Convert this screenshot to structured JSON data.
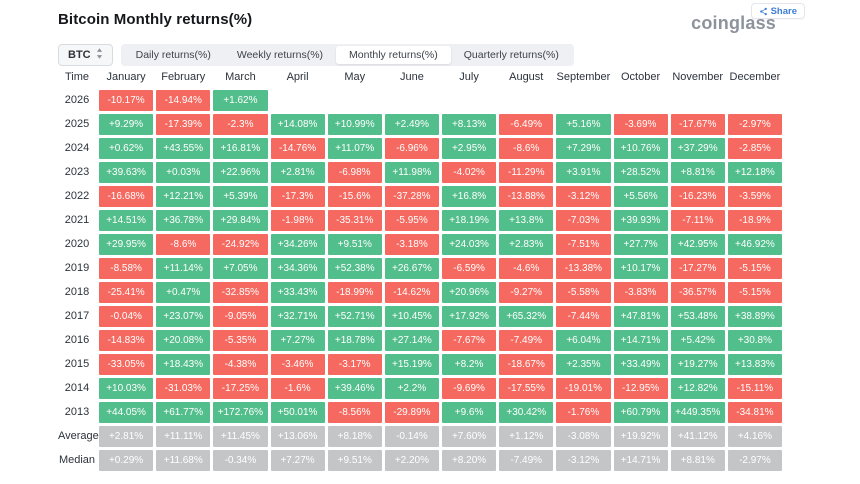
{
  "header": {
    "title": "Bitcoin Monthly returns(%)",
    "share_label": "Share",
    "logo": "coinglass"
  },
  "toolbar": {
    "symbol": "BTC",
    "tabs": [
      {
        "name": "tab-daily-returns",
        "label": "Daily returns(%)",
        "active": false
      },
      {
        "name": "tab-weekly-returns",
        "label": "Weekly returns(%)",
        "active": false
      },
      {
        "name": "tab-monthly-returns",
        "label": "Monthly returns(%)",
        "active": true
      },
      {
        "name": "tab-quarterly-returns",
        "label": "Quarterly returns(%)",
        "active": false
      }
    ]
  },
  "colors": {
    "positive": "#52BE8C",
    "negative": "#F66960",
    "muted": "#C3C5C7",
    "accent_blue": "#3d7ed6"
  },
  "chart_data": {
    "type": "heatmap",
    "title": "Bitcoin Monthly returns(%)",
    "time_header": "Time",
    "columns": [
      "January",
      "February",
      "March",
      "April",
      "May",
      "June",
      "July",
      "August",
      "September",
      "October",
      "November",
      "December"
    ],
    "rows": [
      {
        "label": "2026",
        "muted": false,
        "values": [
          "-10.17%",
          "-14.94%",
          "+1.62%",
          "",
          "",
          "",
          "",
          "",
          "",
          "",
          "",
          ""
        ]
      },
      {
        "label": "2025",
        "muted": false,
        "values": [
          "+9.29%",
          "-17.39%",
          "-2.3%",
          "+14.08%",
          "+10.99%",
          "+2.49%",
          "+8.13%",
          "-6.49%",
          "+5.16%",
          "-3.69%",
          "-17.67%",
          "-2.97%"
        ]
      },
      {
        "label": "2024",
        "muted": false,
        "values": [
          "+0.62%",
          "+43.55%",
          "+16.81%",
          "-14.76%",
          "+11.07%",
          "-6.96%",
          "+2.95%",
          "-8.6%",
          "+7.29%",
          "+10.76%",
          "+37.29%",
          "-2.85%"
        ]
      },
      {
        "label": "2023",
        "muted": false,
        "values": [
          "+39.63%",
          "+0.03%",
          "+22.96%",
          "+2.81%",
          "-6.98%",
          "+11.98%",
          "-4.02%",
          "-11.29%",
          "+3.91%",
          "+28.52%",
          "+8.81%",
          "+12.18%"
        ]
      },
      {
        "label": "2022",
        "muted": false,
        "values": [
          "-16.68%",
          "+12.21%",
          "+5.39%",
          "-17.3%",
          "-15.6%",
          "-37.28%",
          "+16.8%",
          "-13.88%",
          "-3.12%",
          "+5.56%",
          "-16.23%",
          "-3.59%"
        ]
      },
      {
        "label": "2021",
        "muted": false,
        "values": [
          "+14.51%",
          "+36.78%",
          "+29.84%",
          "-1.98%",
          "-35.31%",
          "-5.95%",
          "+18.19%",
          "+13.8%",
          "-7.03%",
          "+39.93%",
          "-7.11%",
          "-18.9%"
        ]
      },
      {
        "label": "2020",
        "muted": false,
        "values": [
          "+29.95%",
          "-8.6%",
          "-24.92%",
          "+34.26%",
          "+9.51%",
          "-3.18%",
          "+24.03%",
          "+2.83%",
          "-7.51%",
          "+27.7%",
          "+42.95%",
          "+46.92%"
        ]
      },
      {
        "label": "2019",
        "muted": false,
        "values": [
          "-8.58%",
          "+11.14%",
          "+7.05%",
          "+34.36%",
          "+52.38%",
          "+26.67%",
          "-6.59%",
          "-4.6%",
          "-13.38%",
          "+10.17%",
          "-17.27%",
          "-5.15%"
        ]
      },
      {
        "label": "2018",
        "muted": false,
        "values": [
          "-25.41%",
          "+0.47%",
          "-32.85%",
          "+33.43%",
          "-18.99%",
          "-14.62%",
          "+20.96%",
          "-9.27%",
          "-5.58%",
          "-3.83%",
          "-36.57%",
          "-5.15%"
        ]
      },
      {
        "label": "2017",
        "muted": false,
        "values": [
          "-0.04%",
          "+23.07%",
          "-9.05%",
          "+32.71%",
          "+52.71%",
          "+10.45%",
          "+17.92%",
          "+65.32%",
          "-7.44%",
          "+47.81%",
          "+53.48%",
          "+38.89%"
        ]
      },
      {
        "label": "2016",
        "muted": false,
        "values": [
          "-14.83%",
          "+20.08%",
          "-5.35%",
          "+7.27%",
          "+18.78%",
          "+27.14%",
          "-7.67%",
          "-7.49%",
          "+6.04%",
          "+14.71%",
          "+5.42%",
          "+30.8%"
        ]
      },
      {
        "label": "2015",
        "muted": false,
        "values": [
          "-33.05%",
          "+18.43%",
          "-4.38%",
          "-3.46%",
          "-3.17%",
          "+15.19%",
          "+8.2%",
          "-18.67%",
          "+2.35%",
          "+33.49%",
          "+19.27%",
          "+13.83%"
        ]
      },
      {
        "label": "2014",
        "muted": false,
        "values": [
          "+10.03%",
          "-31.03%",
          "-17.25%",
          "-1.6%",
          "+39.46%",
          "+2.2%",
          "-9.69%",
          "-17.55%",
          "-19.01%",
          "-12.95%",
          "+12.82%",
          "-15.11%"
        ]
      },
      {
        "label": "2013",
        "muted": false,
        "values": [
          "+44.05%",
          "+61.77%",
          "+172.76%",
          "+50.01%",
          "-8.56%",
          "-29.89%",
          "+9.6%",
          "+30.42%",
          "-1.76%",
          "+60.79%",
          "+449.35%",
          "-34.81%"
        ]
      },
      {
        "label": "Average",
        "muted": true,
        "values": [
          "+2.81%",
          "+11.11%",
          "+11.45%",
          "+13.06%",
          "+8.18%",
          "-0.14%",
          "+7.60%",
          "+1.12%",
          "-3.08%",
          "+19.92%",
          "+41.12%",
          "+4.16%"
        ]
      },
      {
        "label": "Median",
        "muted": true,
        "values": [
          "+0.29%",
          "+11.68%",
          "-0.34%",
          "+7.27%",
          "+9.51%",
          "+2.20%",
          "+8.20%",
          "-7.49%",
          "-3.12%",
          "+14.71%",
          "+8.81%",
          "-2.97%"
        ]
      }
    ]
  }
}
